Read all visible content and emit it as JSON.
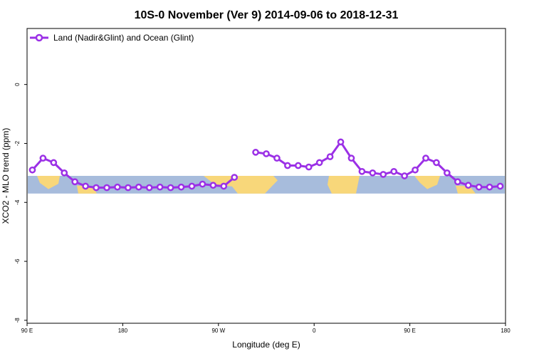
{
  "chart_data": {
    "type": "line",
    "title": "10S-0 November (Ver 9)   2014-09-06 to 2018-12-31",
    "xlabel": "Longitude (deg E)",
    "ylabel": "XCO2 - MLO trend (ppm)",
    "xlim": [
      90,
      540
    ],
    "ylim": [
      -8.1,
      1.9
    ],
    "x_ticks": [
      {
        "value": 90,
        "label": "90 E"
      },
      {
        "value": 180,
        "label": "180"
      },
      {
        "value": 270,
        "label": "90 W"
      },
      {
        "value": 360,
        "label": "0"
      },
      {
        "value": 450,
        "label": "90 E"
      },
      {
        "value": 540,
        "label": "180"
      }
    ],
    "y_ticks": [
      {
        "value": 0,
        "label": "0"
      },
      {
        "value": -2,
        "label": "-2"
      },
      {
        "value": -4,
        "label": "-4"
      },
      {
        "value": -6,
        "label": "-6"
      },
      {
        "value": -8,
        "label": "-8"
      }
    ],
    "grid": false,
    "legend_position": "top-left",
    "map_band": {
      "y_top": -3.1,
      "y_bottom": -3.7,
      "ocean_color": "#a7bcdc",
      "land_color": "#f8d77a"
    },
    "series": [
      {
        "name": "Land (Nadir&Glint) and Ocean (Glint)",
        "color": "#9b30e6",
        "segments": [
          [
            {
              "x": 95,
              "y": -2.9
            },
            {
              "x": 105,
              "y": -2.5
            },
            {
              "x": 115,
              "y": -2.65
            },
            {
              "x": 125,
              "y": -3.0
            },
            {
              "x": 135,
              "y": -3.3
            },
            {
              "x": 145,
              "y": -3.45
            },
            {
              "x": 155,
              "y": -3.5
            },
            {
              "x": 165,
              "y": -3.5
            },
            {
              "x": 175,
              "y": -3.48
            },
            {
              "x": 185,
              "y": -3.5
            },
            {
              "x": 195,
              "y": -3.48
            },
            {
              "x": 205,
              "y": -3.5
            },
            {
              "x": 215,
              "y": -3.48
            },
            {
              "x": 225,
              "y": -3.5
            },
            {
              "x": 235,
              "y": -3.48
            },
            {
              "x": 245,
              "y": -3.45
            },
            {
              "x": 255,
              "y": -3.38
            },
            {
              "x": 265,
              "y": -3.42
            },
            {
              "x": 275,
              "y": -3.45
            },
            {
              "x": 285,
              "y": -3.15
            }
          ],
          [
            {
              "x": 305,
              "y": -2.3
            },
            {
              "x": 315,
              "y": -2.35
            },
            {
              "x": 325,
              "y": -2.5
            },
            {
              "x": 335,
              "y": -2.75
            },
            {
              "x": 345,
              "y": -2.75
            },
            {
              "x": 355,
              "y": -2.8
            },
            {
              "x": 365,
              "y": -2.65
            },
            {
              "x": 375,
              "y": -2.45
            },
            {
              "x": 385,
              "y": -1.95
            },
            {
              "x": 395,
              "y": -2.5
            },
            {
              "x": 405,
              "y": -2.95
            },
            {
              "x": 415,
              "y": -3.0
            },
            {
              "x": 425,
              "y": -3.05
            },
            {
              "x": 435,
              "y": -2.95
            },
            {
              "x": 445,
              "y": -3.1
            },
            {
              "x": 455,
              "y": -2.9
            },
            {
              "x": 465,
              "y": -2.5
            },
            {
              "x": 475,
              "y": -2.65
            },
            {
              "x": 485,
              "y": -3.0
            },
            {
              "x": 495,
              "y": -3.3
            },
            {
              "x": 505,
              "y": -3.42
            },
            {
              "x": 515,
              "y": -3.48
            },
            {
              "x": 525,
              "y": -3.48
            },
            {
              "x": 535,
              "y": -3.45
            }
          ]
        ]
      }
    ]
  }
}
